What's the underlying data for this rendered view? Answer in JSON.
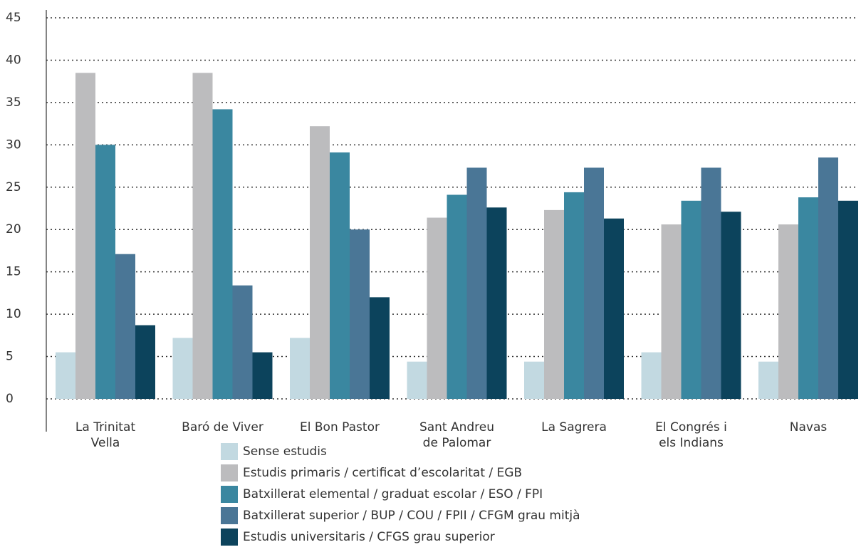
{
  "chart_data": {
    "type": "bar",
    "categories": [
      "La Trinitat\nVella",
      "Baró de Viver",
      "El Bon Pastor",
      "Sant Andreu\nde Palomar",
      "La Sagrera",
      "El Congrés i\nels Indians",
      "Navas"
    ],
    "series": [
      {
        "name": "Sense estudis",
        "color": "#c2d9e1",
        "values": [
          5.5,
          7.2,
          7.2,
          4.4,
          4.4,
          5.5,
          4.4
        ]
      },
      {
        "name": "Estudis primaris / certificat d’escolaritat / EGB",
        "color": "#bcbcbe",
        "values": [
          38.5,
          38.5,
          32.2,
          21.4,
          22.3,
          20.6,
          20.6
        ]
      },
      {
        "name": "Batxillerat elemental / graduat escolar / ESO / FPI",
        "color": "#3a87a0",
        "values": [
          30.0,
          34.2,
          29.1,
          24.1,
          24.4,
          23.4,
          23.8
        ]
      },
      {
        "name": "Batxillerat superior / BUP / COU / FPII / CFGM grau mitjà",
        "color": "#4a7696",
        "values": [
          17.1,
          13.4,
          20.0,
          27.3,
          27.3,
          27.3,
          28.5
        ]
      },
      {
        "name": "Estudis universitaris / CFGS grau superior",
        "color": "#0c435c",
        "values": [
          8.7,
          5.5,
          12.0,
          22.6,
          21.3,
          22.1,
          23.4
        ]
      }
    ],
    "ylim": [
      0,
      45
    ],
    "yticks": [
      0,
      5,
      10,
      15,
      20,
      25,
      30,
      35,
      40,
      45
    ],
    "grid": true,
    "legend": "bottom"
  }
}
